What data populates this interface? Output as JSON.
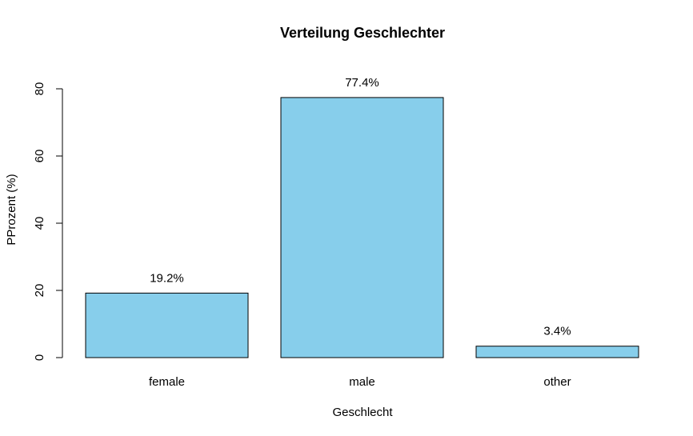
{
  "chart_data": {
    "type": "bar",
    "title": "Verteilung Geschlechter",
    "xlabel": "Geschlecht",
    "ylabel": "PProzent (%)",
    "categories": [
      "female",
      "male",
      "other"
    ],
    "values": [
      19.2,
      77.4,
      3.4
    ],
    "data_labels": [
      "19.2%",
      "77.4%",
      "3.4%"
    ],
    "ylim": [
      0,
      80
    ],
    "yticks": [
      0,
      20,
      40,
      60,
      80
    ],
    "ytick_labels": [
      "0",
      "20",
      "40",
      "60",
      "80"
    ],
    "grid": false,
    "legend": "none",
    "bar_color": "#87CEEB",
    "bar_edge_color": "#000000"
  }
}
